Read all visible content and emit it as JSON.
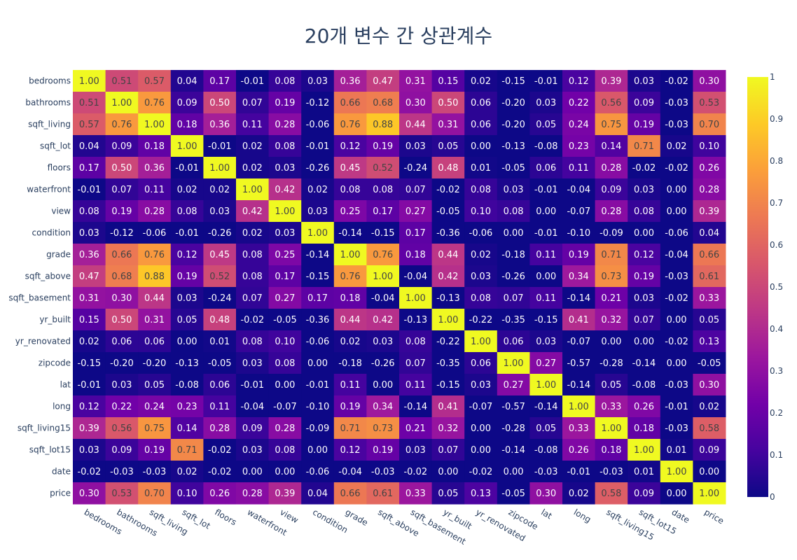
{
  "title": "20개 변수 간 상관계수",
  "chart_data": {
    "type": "heatmap",
    "title": "20개 변수 간 상관계수",
    "labels": [
      "bedrooms",
      "bathrooms",
      "sqft_living",
      "sqft_lot",
      "floors",
      "waterfront",
      "view",
      "condition",
      "grade",
      "sqft_above",
      "sqft_basement",
      "yr_built",
      "yr_renovated",
      "zipcode",
      "lat",
      "long",
      "sqft_living15",
      "sqft_lot15",
      "date",
      "price"
    ],
    "matrix": [
      [
        1.0,
        0.51,
        0.57,
        0.04,
        0.17,
        -0.01,
        0.08,
        0.03,
        0.36,
        0.47,
        0.31,
        0.15,
        0.02,
        -0.15,
        -0.01,
        0.12,
        0.39,
        0.03,
        -0.02,
        0.3
      ],
      [
        0.51,
        1.0,
        0.76,
        0.09,
        0.5,
        0.07,
        0.19,
        -0.12,
        0.66,
        0.68,
        0.3,
        0.5,
        0.06,
        -0.2,
        0.03,
        0.22,
        0.56,
        0.09,
        -0.03,
        0.53
      ],
      [
        0.57,
        0.76,
        1.0,
        0.18,
        0.36,
        0.11,
        0.28,
        -0.06,
        0.76,
        0.88,
        0.44,
        0.31,
        0.06,
        -0.2,
        0.05,
        0.24,
        0.75,
        0.19,
        -0.03,
        0.7
      ],
      [
        0.04,
        0.09,
        0.18,
        1.0,
        -0.01,
        0.02,
        0.08,
        -0.01,
        0.12,
        0.19,
        0.03,
        0.05,
        0.0,
        -0.13,
        -0.08,
        0.23,
        0.14,
        0.71,
        0.02,
        0.1
      ],
      [
        0.17,
        0.5,
        0.36,
        -0.01,
        1.0,
        0.02,
        0.03,
        -0.26,
        0.45,
        0.52,
        -0.24,
        0.48,
        0.01,
        -0.05,
        0.06,
        0.11,
        0.28,
        -0.02,
        -0.02,
        0.26
      ],
      [
        -0.01,
        0.07,
        0.11,
        0.02,
        0.02,
        1.0,
        0.42,
        0.02,
        0.08,
        0.08,
        0.07,
        -0.02,
        0.08,
        0.03,
        -0.01,
        -0.04,
        0.09,
        0.03,
        0.0,
        0.28
      ],
      [
        0.08,
        0.19,
        0.28,
        0.08,
        0.03,
        0.42,
        1.0,
        0.03,
        0.25,
        0.17,
        0.27,
        -0.05,
        0.1,
        0.08,
        0.0,
        -0.07,
        0.28,
        0.08,
        0.0,
        0.39
      ],
      [
        0.03,
        -0.12,
        -0.06,
        -0.01,
        -0.26,
        0.02,
        0.03,
        1.0,
        -0.14,
        -0.15,
        0.17,
        -0.36,
        -0.06,
        0.0,
        -0.01,
        -0.1,
        -0.09,
        0.0,
        -0.06,
        0.04
      ],
      [
        0.36,
        0.66,
        0.76,
        0.12,
        0.45,
        0.08,
        0.25,
        -0.14,
        1.0,
        0.76,
        0.18,
        0.44,
        0.02,
        -0.18,
        0.11,
        0.19,
        0.71,
        0.12,
        -0.04,
        0.66
      ],
      [
        0.47,
        0.68,
        0.88,
        0.19,
        0.52,
        0.08,
        0.17,
        -0.15,
        0.76,
        1.0,
        -0.04,
        0.42,
        0.03,
        -0.26,
        0.0,
        0.34,
        0.73,
        0.19,
        -0.03,
        0.61
      ],
      [
        0.31,
        0.3,
        0.44,
        0.03,
        -0.24,
        0.07,
        0.27,
        0.17,
        0.18,
        -0.04,
        1.0,
        -0.13,
        0.08,
        0.07,
        0.11,
        -0.14,
        0.21,
        0.03,
        -0.02,
        0.33
      ],
      [
        0.15,
        0.5,
        0.31,
        0.05,
        0.48,
        -0.02,
        -0.05,
        -0.36,
        0.44,
        0.42,
        -0.13,
        1.0,
        -0.22,
        -0.35,
        -0.15,
        0.41,
        0.32,
        0.07,
        0.0,
        0.05
      ],
      [
        0.02,
        0.06,
        0.06,
        0.0,
        0.01,
        0.08,
        0.1,
        -0.06,
        0.02,
        0.03,
        0.08,
        -0.22,
        1.0,
        0.06,
        0.03,
        -0.07,
        0.0,
        0.0,
        -0.02,
        0.13
      ],
      [
        -0.15,
        -0.2,
        -0.2,
        -0.13,
        -0.05,
        0.03,
        0.08,
        0.0,
        -0.18,
        -0.26,
        0.07,
        -0.35,
        0.06,
        1.0,
        0.27,
        -0.57,
        -0.28,
        -0.14,
        0.0,
        -0.05
      ],
      [
        -0.01,
        0.03,
        0.05,
        -0.08,
        0.06,
        -0.01,
        0.0,
        -0.01,
        0.11,
        0.0,
        0.11,
        -0.15,
        0.03,
        0.27,
        1.0,
        -0.14,
        0.05,
        -0.08,
        -0.03,
        0.3
      ],
      [
        0.12,
        0.22,
        0.24,
        0.23,
        0.11,
        -0.04,
        -0.07,
        -0.1,
        0.19,
        0.34,
        -0.14,
        0.41,
        -0.07,
        -0.57,
        -0.14,
        1.0,
        0.33,
        0.26,
        -0.01,
        0.02
      ],
      [
        0.39,
        0.56,
        0.75,
        0.14,
        0.28,
        0.09,
        0.28,
        -0.09,
        0.71,
        0.73,
        0.21,
        0.32,
        0.0,
        -0.28,
        0.05,
        0.33,
        1.0,
        0.18,
        -0.03,
        0.58
      ],
      [
        0.03,
        0.09,
        0.19,
        0.71,
        -0.02,
        0.03,
        0.08,
        0.0,
        0.12,
        0.19,
        0.03,
        0.07,
        0.0,
        -0.14,
        -0.08,
        0.26,
        0.18,
        1.0,
        0.01,
        0.09
      ],
      [
        -0.02,
        -0.03,
        -0.03,
        0.02,
        -0.02,
        0.0,
        0.0,
        -0.06,
        -0.04,
        -0.03,
        -0.02,
        0.0,
        -0.02,
        0.0,
        -0.03,
        -0.01,
        -0.03,
        0.01,
        1.0,
        0.0
      ],
      [
        0.3,
        0.53,
        0.7,
        0.1,
        0.26,
        0.28,
        0.39,
        0.04,
        0.66,
        0.61,
        0.33,
        0.05,
        0.13,
        -0.05,
        0.3,
        0.02,
        0.58,
        0.09,
        0.0,
        1.0
      ]
    ],
    "colorscale": "plasma",
    "zmin": 0,
    "zmax": 1,
    "colorbar_ticks": [
      "0",
      "0.1",
      "0.2",
      "0.3",
      "0.4",
      "0.5",
      "0.6",
      "0.7",
      "0.8",
      "0.9",
      "1"
    ]
  }
}
